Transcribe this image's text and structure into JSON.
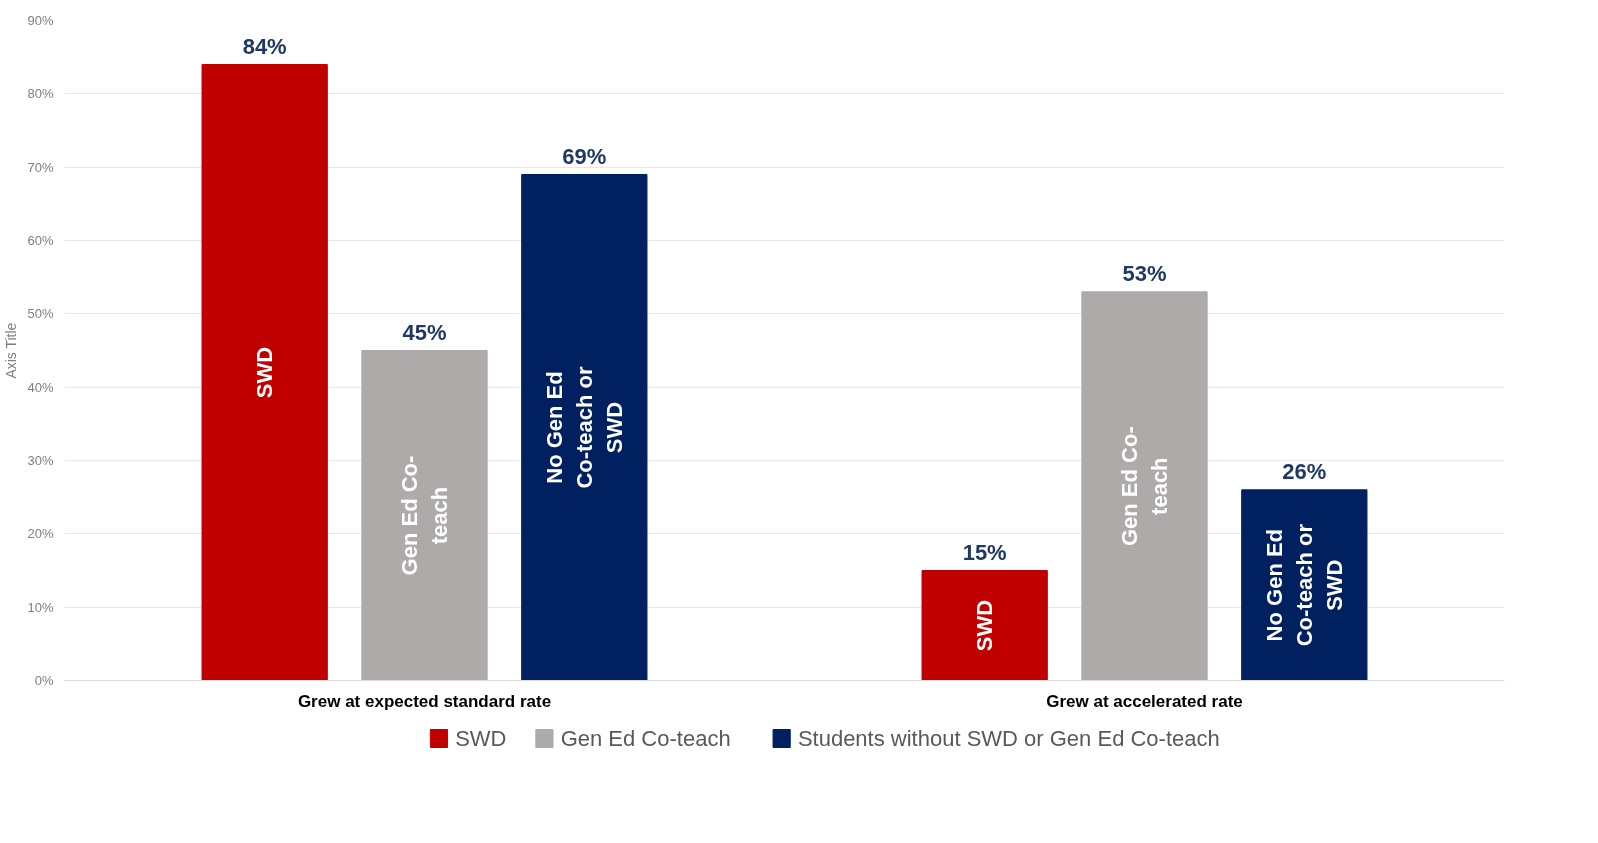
{
  "chart_data": {
    "type": "bar",
    "ylabel": "Axis Title",
    "categories": [
      "Grew at expected standard rate",
      "Grew at accelerated rate"
    ],
    "series": [
      {
        "name": "SWD",
        "color": "#c00000",
        "values": [
          84,
          15
        ],
        "value_labels": [
          "84%",
          "15%"
        ]
      },
      {
        "name": "Gen Ed Co-teach",
        "color": "#aeaaaa",
        "values": [
          45,
          53
        ],
        "value_labels": [
          "45%",
          "53%"
        ]
      },
      {
        "name": "Students without SWD or Gen Ed Co-teach",
        "color": "#002060",
        "values": [
          69,
          26
        ],
        "value_labels": [
          "69%",
          "26%"
        ]
      }
    ],
    "annotations": [
      "SWD",
      "SWD",
      "Gen Ed Co-teach",
      "Gen Ed Co-teach",
      "No Gen Ed Co-teach or SWD",
      "No Gen Ed Co-teach or SWD"
    ],
    "ylim": [
      0,
      90
    ],
    "yticks": [
      {
        "value": 0,
        "label": "0%"
      },
      {
        "value": 10,
        "label": "10%"
      },
      {
        "value": 20,
        "label": "20%"
      },
      {
        "value": 30,
        "label": "30%"
      },
      {
        "value": 40,
        "label": "40%"
      },
      {
        "value": 50,
        "label": "50%"
      },
      {
        "value": 60,
        "label": "60%"
      },
      {
        "value": 70,
        "label": "70%"
      },
      {
        "value": 80,
        "label": "80%"
      },
      {
        "value": 90,
        "label": "90%"
      }
    ],
    "grid": "y",
    "legend": "bottom"
  }
}
